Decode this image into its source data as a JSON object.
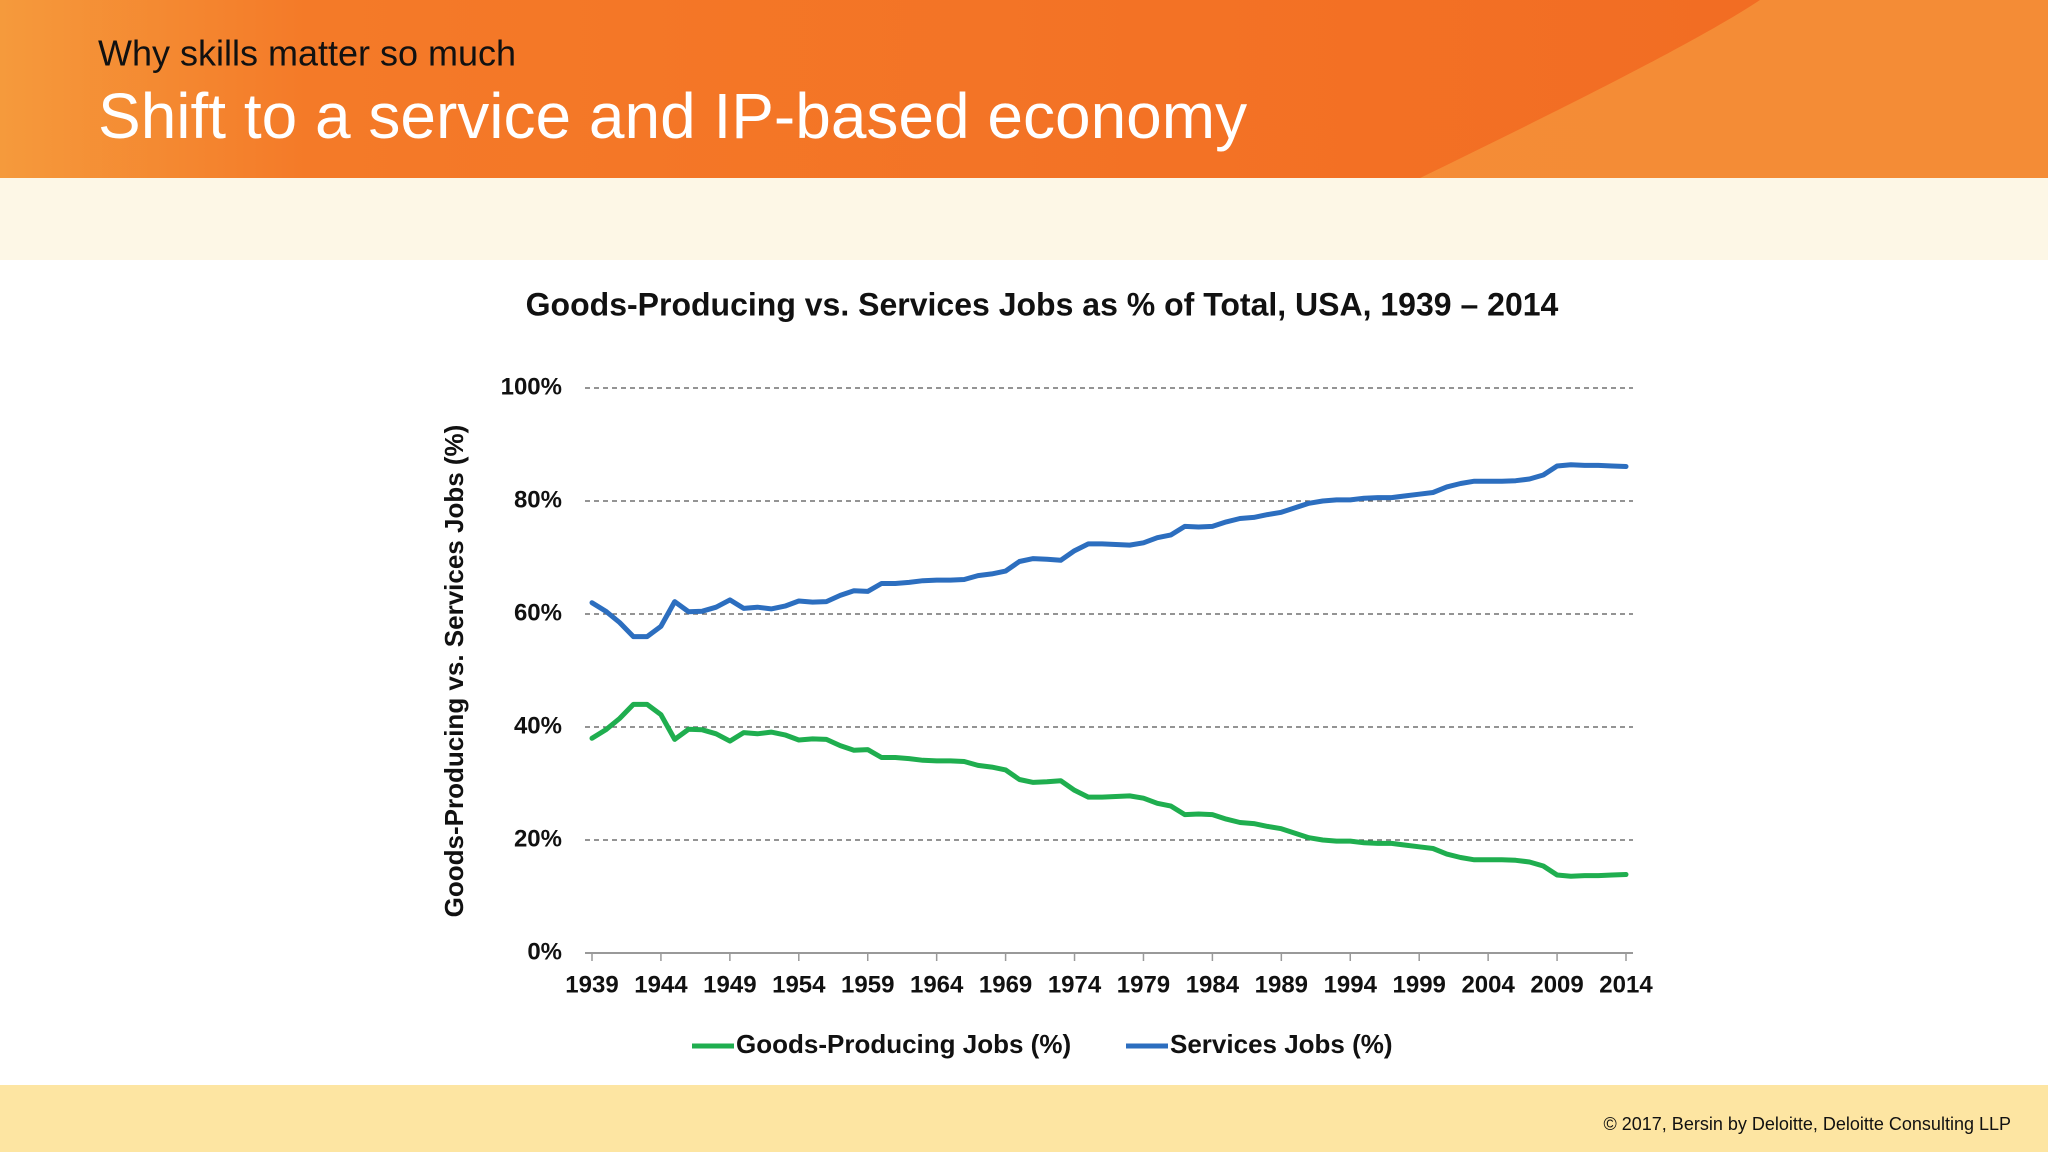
{
  "header": {
    "kicker": "Why skills matter so much",
    "title": "Shift to a service and IP-based economy"
  },
  "footer": {
    "copyright": "© 2017, Bersin by Deloitte, Deloitte Consulting LLP"
  },
  "chart_data": {
    "type": "line",
    "title": "Goods-Producing vs. Services Jobs as % of Total, USA, 1939 – 2014",
    "y_label": "Goods-Producing vs. Services Jobs (%)",
    "x": [
      1939,
      1940,
      1941,
      1942,
      1943,
      1944,
      1945,
      1946,
      1947,
      1948,
      1949,
      1950,
      1951,
      1952,
      1953,
      1954,
      1955,
      1956,
      1957,
      1958,
      1959,
      1960,
      1961,
      1962,
      1963,
      1964,
      1965,
      1966,
      1967,
      1968,
      1969,
      1970,
      1971,
      1972,
      1973,
      1974,
      1975,
      1976,
      1977,
      1978,
      1979,
      1980,
      1981,
      1982,
      1983,
      1984,
      1985,
      1986,
      1987,
      1988,
      1989,
      1990,
      1991,
      1992,
      1993,
      1994,
      1995,
      1996,
      1997,
      1998,
      1999,
      2000,
      2001,
      2002,
      2003,
      2004,
      2005,
      2006,
      2007,
      2008,
      2009,
      2010,
      2011,
      2012,
      2013,
      2014
    ],
    "xlim": [
      1939,
      2014
    ],
    "xticks": [
      1939,
      1944,
      1949,
      1954,
      1959,
      1964,
      1969,
      1974,
      1979,
      1984,
      1989,
      1994,
      1999,
      2004,
      2009,
      2014
    ],
    "ylim": [
      0,
      100
    ],
    "yticks": [
      {
        "value": 0,
        "label": "0%"
      },
      {
        "value": 20,
        "label": "20%"
      },
      {
        "value": 40,
        "label": "40%"
      },
      {
        "value": 60,
        "label": "60%"
      },
      {
        "value": 80,
        "label": "80%"
      },
      {
        "value": 100,
        "label": "100%"
      }
    ],
    "grid": true,
    "legend": "bottom",
    "series": [
      {
        "name": "Goods-Producing Jobs (%)",
        "color": "#1fae4f",
        "values": [
          38,
          39.5,
          41.5,
          44,
          44,
          42.2,
          37.8,
          39.6,
          39.5,
          38.8,
          37.5,
          39,
          38.8,
          39.1,
          38.6,
          37.7,
          37.9,
          37.8,
          36.7,
          35.9,
          36,
          34.6,
          34.6,
          34.4,
          34.1,
          34,
          34,
          33.9,
          33.2,
          32.9,
          32.4,
          30.7,
          30.2,
          30.3,
          30.5,
          28.8,
          27.6,
          27.6,
          27.7,
          27.8,
          27.4,
          26.5,
          26,
          24.5,
          24.6,
          24.5,
          23.7,
          23.1,
          22.9,
          22.4,
          22,
          21.2,
          20.4,
          20,
          19.8,
          19.8,
          19.5,
          19.4,
          19.4,
          19.1,
          18.8,
          18.5,
          17.5,
          16.9,
          16.5,
          16.5,
          16.5,
          16.4,
          16.1,
          15.4,
          13.8,
          13.6,
          13.7,
          13.7,
          13.8,
          13.9
        ]
      },
      {
        "name": "Services Jobs (%)",
        "color": "#2c6ebf",
        "values": [
          62,
          60.5,
          58.5,
          56,
          56,
          57.8,
          62.2,
          60.4,
          60.5,
          61.2,
          62.5,
          61,
          61.2,
          60.9,
          61.4,
          62.3,
          62.1,
          62.2,
          63.3,
          64.1,
          64,
          65.4,
          65.4,
          65.6,
          65.9,
          66,
          66,
          66.1,
          66.8,
          67.1,
          67.6,
          69.3,
          69.8,
          69.7,
          69.5,
          71.2,
          72.4,
          72.4,
          72.3,
          72.2,
          72.6,
          73.5,
          74,
          75.5,
          75.4,
          75.5,
          76.3,
          76.9,
          77.1,
          77.6,
          78,
          78.8,
          79.6,
          80,
          80.2,
          80.2,
          80.5,
          80.6,
          80.6,
          80.9,
          81.2,
          81.5,
          82.5,
          83.1,
          83.5,
          83.5,
          83.5,
          83.6,
          83.9,
          84.6,
          86.2,
          86.4,
          86.3,
          86.3,
          86.2,
          86.1
        ]
      }
    ]
  }
}
